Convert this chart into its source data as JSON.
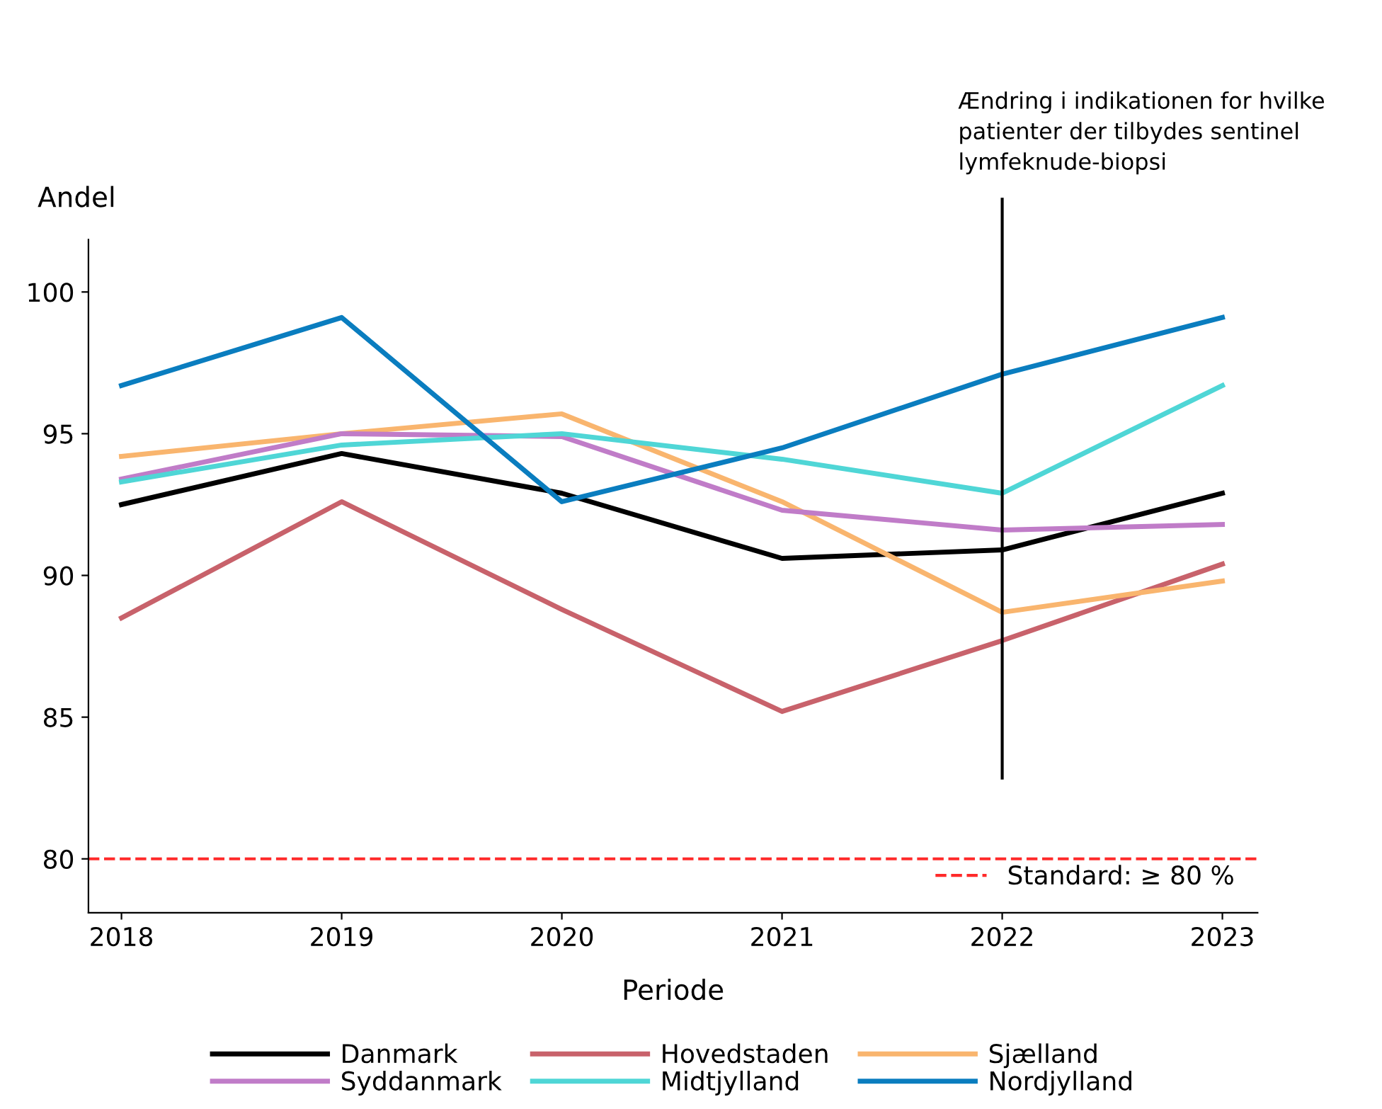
{
  "chart_data": {
    "type": "line",
    "xlabel": "Periode",
    "ylabel": "Andel",
    "x": [
      2018,
      2019,
      2020,
      2021,
      2022,
      2023
    ],
    "xlim": [
      2017.85,
      2023.16
    ],
    "xticks": [
      2018,
      2019,
      2020,
      2021,
      2022,
      2023
    ],
    "ylim": [
      78.1,
      101.85
    ],
    "yticks": [
      80,
      85,
      90,
      95,
      100
    ],
    "grid": false,
    "legend": "bottom",
    "marker": "none",
    "line_style": "solid",
    "series": [
      {
        "name": "Danmark",
        "color": "#000000",
        "values": [
          92.5,
          94.3,
          92.9,
          90.6,
          90.9,
          92.9
        ]
      },
      {
        "name": "Hovedstaden",
        "color": "#c8626b",
        "values": [
          88.5,
          92.6,
          88.8,
          85.2,
          87.7,
          90.4
        ]
      },
      {
        "name": "Sjælland",
        "color": "#f9b56e",
        "values": [
          94.2,
          95.0,
          95.7,
          92.6,
          88.7,
          89.8
        ]
      },
      {
        "name": "Syddanmark",
        "color": "#c07cc8",
        "values": [
          93.4,
          95.0,
          94.9,
          92.3,
          91.6,
          91.8
        ]
      },
      {
        "name": "Midtjylland",
        "color": "#4fd6d6",
        "values": [
          93.3,
          94.6,
          95.0,
          94.1,
          92.9,
          96.7
        ]
      },
      {
        "name": "Nordjylland",
        "color": "#0a7dbf",
        "values": [
          96.7,
          99.1,
          92.6,
          94.5,
          97.1,
          99.1
        ]
      }
    ],
    "ref_lines": [
      {
        "axis": "y",
        "value": 80,
        "label": "Standard: ≥ 80 %",
        "color": "#ff2a2a",
        "line_style": "dashed"
      },
      {
        "axis": "x",
        "value": 2022,
        "label": "Ændring i indikationen for hvilke patienter der tilbydes sentinel lymfeknude-biopsi",
        "color": "#000000",
        "line_style": "solid"
      }
    ]
  }
}
